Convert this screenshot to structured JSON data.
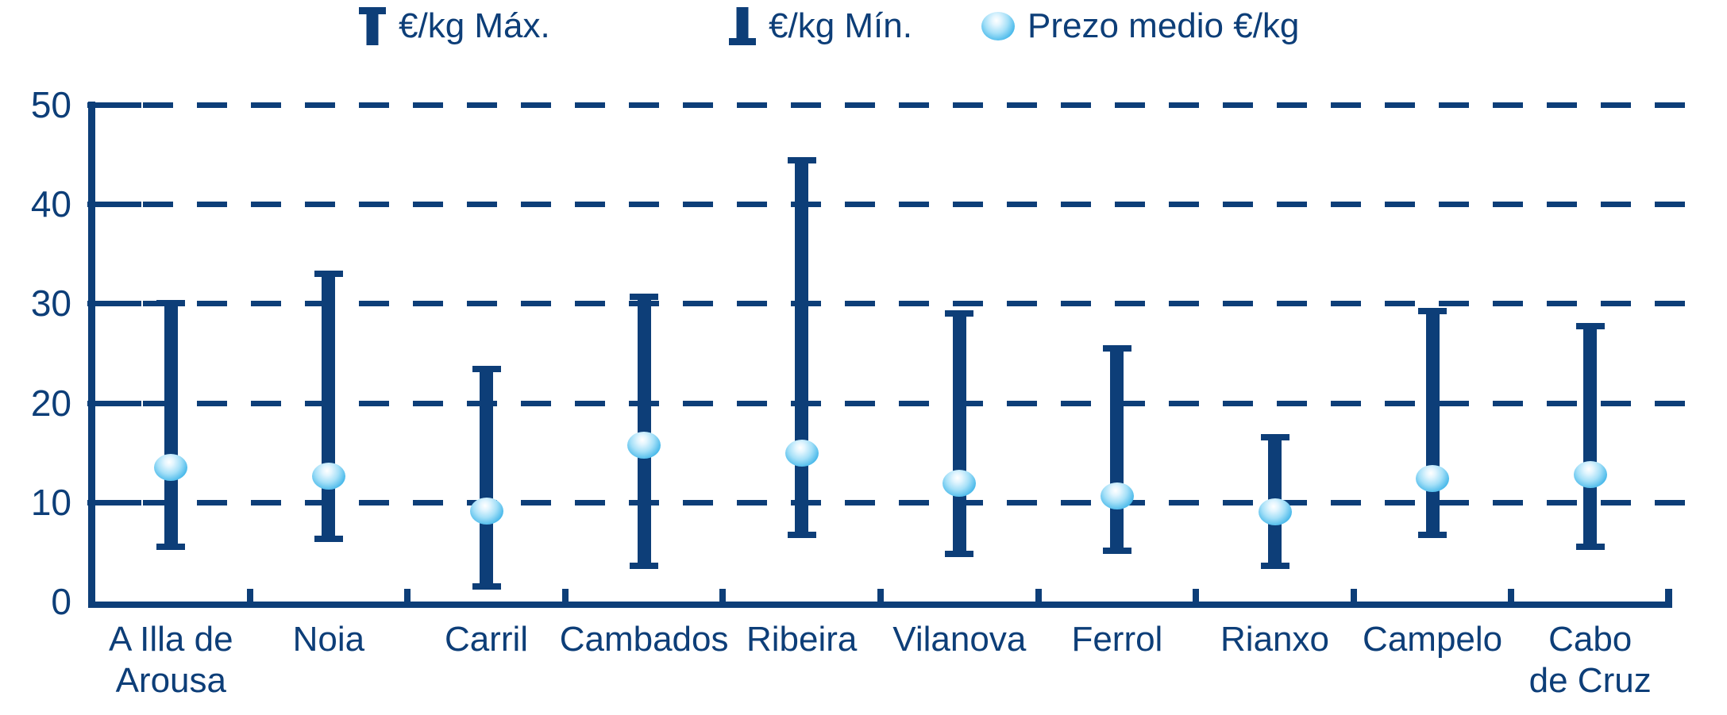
{
  "colors": {
    "navy": "#0d3e78",
    "sphere_edge": "#0f8fcd",
    "sphere_mid": "#a5e0f8",
    "sphere_highlight": "#ffffff"
  },
  "legend": {
    "items": [
      {
        "label": "€/kg Máx.",
        "icon": "max-range-icon"
      },
      {
        "label": "€/kg Mín.",
        "icon": "min-range-icon"
      },
      {
        "label": "Prezo medio €/kg",
        "icon": "mean-sphere-icon"
      }
    ]
  },
  "chart_data": {
    "type": "error-bar-range",
    "title": "",
    "xlabel": "",
    "ylabel": "",
    "categories": [
      "A Illa de\nArousa",
      "Noia",
      "Carril",
      "Cambados",
      "Ribeira",
      "Vilanova",
      "Ferrol",
      "Rianxo",
      "Campelo",
      "Cabo\nde Cruz"
    ],
    "series": [
      {
        "name": "€/kg Máx.",
        "values": [
          30.0,
          33.0,
          23.4,
          30.7,
          44.4,
          29.0,
          25.5,
          16.5,
          29.2,
          27.7
        ]
      },
      {
        "name": "€/kg Mín.",
        "values": [
          5.5,
          6.3,
          1.5,
          3.6,
          6.7,
          4.8,
          5.1,
          3.6,
          6.7,
          5.5
        ]
      },
      {
        "name": "Prezo medio €/kg",
        "values": [
          13.5,
          12.6,
          9.1,
          15.7,
          14.9,
          11.9,
          10.6,
          9.0,
          12.4,
          12.8
        ]
      }
    ],
    "yticks": [
      0,
      10,
      20,
      30,
      40,
      50
    ],
    "ylim": [
      0,
      50
    ],
    "grid": "horizontal-dashed",
    "legend_position": "top"
  }
}
